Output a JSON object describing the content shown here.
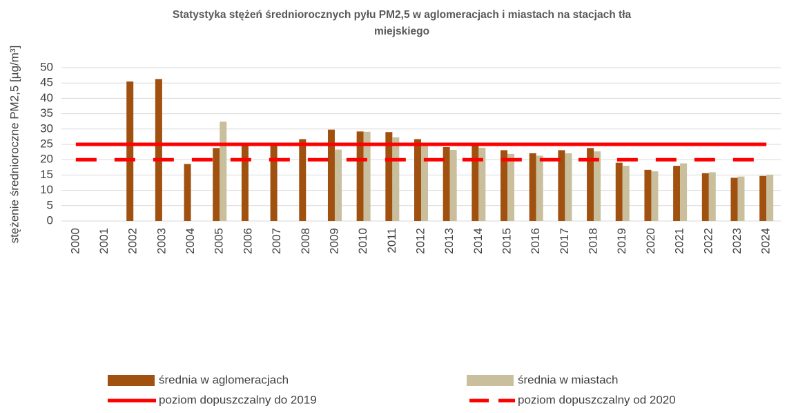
{
  "chart_data": {
    "type": "bar",
    "title": "Statystyka stężeń średniorocznych pyłu PM2,5 w aglomeracjach i miastach na stacjach tła",
    "subtitle": "miejskiego",
    "y_label": "stężenie średnioroczne PM2,5 [µg/m³]",
    "categories": [
      "2000",
      "2001",
      "2002",
      "2003",
      "2004",
      "2005",
      "2006",
      "2007",
      "2008",
      "2009",
      "2010",
      "2011",
      "2012",
      "2013",
      "2014",
      "2015",
      "2016",
      "2017",
      "2018",
      "2019",
      "2020",
      "2021",
      "2022",
      "2023",
      "2024"
    ],
    "series": [
      {
        "name": "średnia w aglomeracjach",
        "type": "bar",
        "color": "#a0500f",
        "values": [
          null,
          null,
          45.5,
          46.3,
          18.6,
          23.8,
          25,
          24.9,
          26.7,
          29.8,
          29.2,
          29.0,
          26.7,
          24.1,
          24.9,
          23.1,
          22.1,
          23.1,
          23.8,
          19.0,
          16.7,
          18.0,
          15.6,
          14.1,
          14.7
        ]
      },
      {
        "name": "średnia w miastach",
        "type": "bar",
        "color": "#c9bf9c",
        "values": [
          null,
          null,
          null,
          null,
          null,
          32.4,
          null,
          null,
          null,
          23.3,
          29.1,
          27.3,
          24.6,
          23.2,
          23.9,
          21.9,
          21.3,
          22.1,
          22.7,
          18.0,
          16.2,
          18.8,
          15.9,
          14.5,
          15.1
        ]
      },
      {
        "name": "poziom dopuszczalny do 2019",
        "type": "line",
        "color": "#ff0000",
        "dashed": false,
        "values": [
          25,
          25,
          25,
          25,
          25,
          25,
          25,
          25,
          25,
          25,
          25,
          25,
          25,
          25,
          25,
          25,
          25,
          25,
          25,
          25,
          25,
          25,
          25,
          25,
          25
        ]
      },
      {
        "name": "poziom dopuszczalny od 2020",
        "type": "line",
        "color": "#ff0000",
        "dashed": true,
        "values": [
          20,
          20,
          20,
          20,
          20,
          20,
          20,
          20,
          20,
          20,
          20,
          20,
          20,
          20,
          20,
          20,
          20,
          20,
          20,
          20,
          20,
          20,
          20,
          20,
          20
        ]
      }
    ],
    "ylim": [
      0,
      50
    ],
    "yticks": [
      0,
      5,
      10,
      15,
      20,
      25,
      30,
      35,
      40,
      45,
      50
    ],
    "grid": true
  }
}
